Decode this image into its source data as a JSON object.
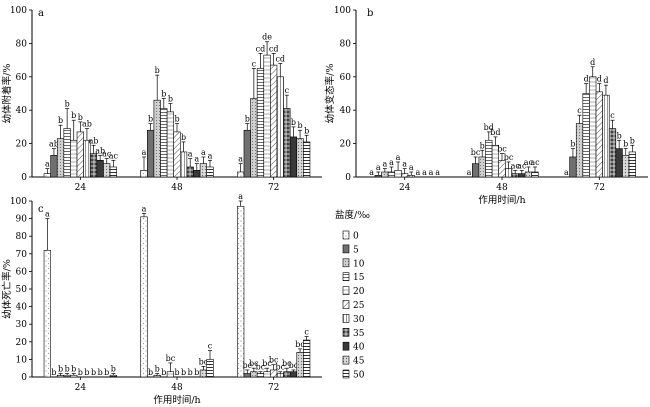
{
  "legend": {
    "title": "盐度/‰",
    "items": [
      "0",
      "5",
      "10",
      "15",
      "20",
      "25",
      "30",
      "35",
      "40",
      "45",
      "50"
    ]
  },
  "chart_data": [
    {
      "type": "bar",
      "panel": "a",
      "ylabel": "幼体附着率/%",
      "xlabel": "",
      "ylim": [
        0,
        100
      ],
      "yticks": [
        0,
        20,
        40,
        60,
        80,
        100
      ],
      "categories": [
        "24",
        "48",
        "72"
      ],
      "series_names": [
        "0",
        "5",
        "10",
        "15",
        "20",
        "25",
        "30",
        "35",
        "40",
        "45",
        "50"
      ],
      "values": [
        [
          2,
          13,
          23,
          29,
          22,
          27,
          22,
          14,
          10,
          8,
          6
        ],
        [
          4,
          28,
          46,
          41,
          39,
          27,
          15,
          6,
          4,
          8,
          6
        ],
        [
          3,
          28,
          47,
          65,
          73,
          67,
          60,
          41,
          24,
          23,
          21
        ]
      ],
      "errors": [
        [
          3,
          4,
          8,
          12,
          12,
          6,
          7,
          5,
          3,
          3,
          4
        ],
        [
          8,
          4,
          15,
          6,
          5,
          5,
          6,
          5,
          4,
          4,
          4
        ],
        [
          5,
          4,
          18,
          9,
          8,
          7,
          8,
          8,
          6,
          5,
          4
        ]
      ],
      "labels": [
        [
          "a",
          "ab",
          "b",
          "b",
          "b",
          "b",
          "ab",
          "ab",
          "ab",
          "ac",
          "ac"
        ],
        [
          "a",
          "b",
          "b",
          "b",
          "b",
          "b",
          "b",
          "a",
          "a",
          "a",
          "a"
        ],
        [
          "a",
          "b",
          "c",
          "cd",
          "de",
          "cd",
          "cd",
          "c",
          "b",
          "b",
          "b"
        ]
      ]
    },
    {
      "type": "bar",
      "panel": "b",
      "ylabel": "幼体变态率/%",
      "xlabel": "作用时间/h",
      "ylim": [
        0,
        100
      ],
      "yticks": [
        0,
        20,
        40,
        60,
        80,
        100
      ],
      "categories": [
        "24",
        "48",
        "72"
      ],
      "series_names": [
        "0",
        "5",
        "10",
        "15",
        "20",
        "25",
        "30",
        "35",
        "40",
        "45",
        "50"
      ],
      "values": [
        [
          0,
          1,
          3,
          3,
          4,
          2,
          1,
          0,
          0,
          0,
          0
        ],
        [
          0,
          8,
          12,
          22,
          19,
          10,
          5,
          2,
          2,
          3,
          3
        ],
        [
          0,
          12,
          32,
          50,
          60,
          51,
          49,
          29,
          17,
          13,
          15
        ]
      ],
      "errors": [
        [
          0,
          2,
          2,
          3,
          5,
          3,
          2,
          0,
          0,
          0,
          0
        ],
        [
          0,
          4,
          4,
          5,
          5,
          4,
          4,
          2,
          2,
          3,
          3
        ],
        [
          0,
          5,
          5,
          6,
          6,
          5,
          6,
          5,
          5,
          4,
          4
        ]
      ],
      "labels": [
        [
          "a",
          "a",
          "a",
          "a",
          "a",
          "a",
          "a",
          "a",
          "a",
          "a",
          "a"
        ],
        [
          "a",
          "bc",
          "b",
          "bd",
          "bd",
          "bc",
          "bc",
          "ac",
          "ac",
          "ac",
          "ac"
        ],
        [
          "a",
          "b",
          "c",
          "d",
          "d",
          "d",
          "d",
          "c",
          "b",
          "b",
          "b"
        ]
      ]
    },
    {
      "type": "bar",
      "panel": "c",
      "ylabel": "幼体死亡率/%",
      "xlabel": "作用时间/h",
      "ylim": [
        0,
        100
      ],
      "yticks": [
        0,
        10,
        20,
        30,
        40,
        50,
        60,
        70,
        80,
        90,
        100
      ],
      "categories": [
        "24",
        "48",
        "72"
      ],
      "series_names": [
        "0",
        "5",
        "10",
        "15",
        "20",
        "25",
        "30",
        "35",
        "40",
        "45",
        "50"
      ],
      "values": [
        [
          72,
          0,
          1,
          1,
          1,
          0,
          0,
          0,
          0,
          0,
          1
        ],
        [
          91,
          0,
          1,
          0,
          3,
          0,
          0,
          0,
          0,
          4,
          10
        ],
        [
          97,
          2,
          3,
          2,
          3,
          4,
          2,
          3,
          3,
          14,
          21
        ]
      ],
      "errors": [
        [
          18,
          0,
          1,
          1,
          1,
          0,
          0,
          0,
          0,
          0,
          1
        ],
        [
          2,
          0,
          1,
          0,
          5,
          0,
          0,
          0,
          0,
          2,
          5
        ],
        [
          3,
          2,
          2,
          1,
          2,
          3,
          1,
          2,
          1,
          2,
          2
        ]
      ],
      "labels": [
        [
          "a",
          "b",
          "b",
          "b",
          "b",
          "b",
          "b",
          "b",
          "b",
          "b",
          "b"
        ],
        [
          "a",
          "b",
          "b",
          "b",
          "bc",
          "b",
          "b",
          "b",
          "b",
          "bc",
          "c"
        ],
        [
          "a",
          "bc",
          "bc",
          "bc",
          "bc",
          "bc",
          "bc",
          "bc",
          "bc",
          "bc",
          "c"
        ]
      ]
    }
  ]
}
